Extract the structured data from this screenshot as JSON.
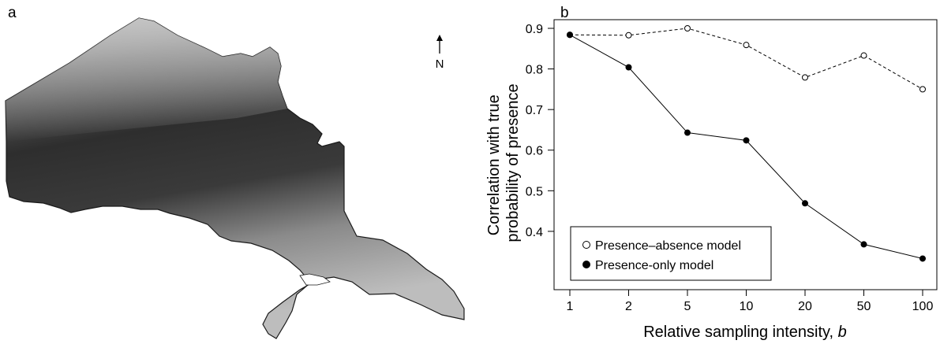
{
  "panels": {
    "map_label": "a",
    "chart_label": "b",
    "north_label": "N"
  },
  "chart_data": {
    "type": "line",
    "xlabel": "Relative sampling intensity, ",
    "xlabel_italic": "b",
    "ylabel_line1": "Correlation with true",
    "ylabel_line2": "probability of presence",
    "categories": [
      "1",
      "2",
      "5",
      "10",
      "20",
      "50",
      "100"
    ],
    "y_ticks": [
      "0.4",
      "0.5",
      "0.6",
      "0.7",
      "0.8",
      "0.9"
    ],
    "ylim": [
      0.33,
      0.9
    ],
    "grid": false,
    "legend_position": "bottom-left",
    "series": [
      {
        "name": "Presence–absence model",
        "marker": "open-circle",
        "line_style": "dashed",
        "values": [
          0.884,
          0.883,
          0.9,
          0.859,
          0.779,
          0.833,
          0.75
        ]
      },
      {
        "name": "Presence-only model",
        "marker": "filled-circle",
        "line_style": "solid",
        "values": [
          0.884,
          0.804,
          0.643,
          0.624,
          0.469,
          0.368,
          0.333
        ]
      }
    ]
  }
}
